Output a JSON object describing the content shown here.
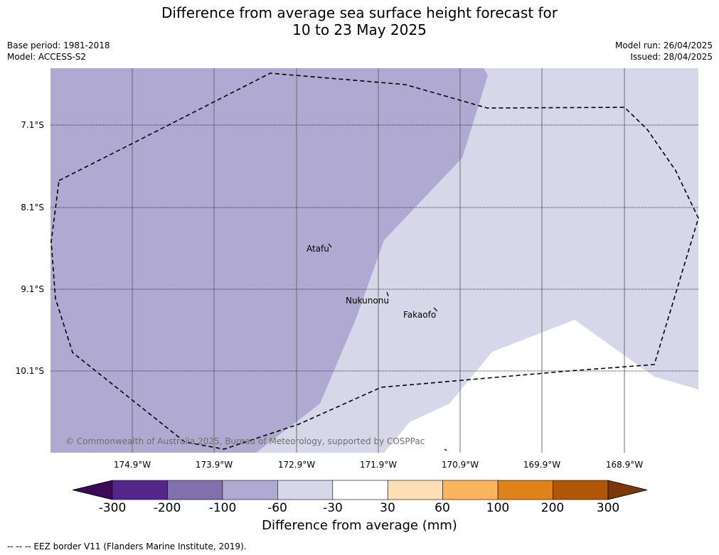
{
  "title_line1": "Difference from average sea surface height forecast for",
  "title_line2": "10 to 23 May 2025",
  "meta": {
    "base_period": "Base period: 1981-2018",
    "model": "Model: ACCESS-S2",
    "model_run": "Model run: 26/04/2025",
    "issued": "Issued: 28/04/2025"
  },
  "map": {
    "longitudes": [
      "174.9°W",
      "173.9°W",
      "172.9°W",
      "171.9°W",
      "170.9°W",
      "169.9°W",
      "168.9°W"
    ],
    "latitudes": [
      "7.1°S",
      "8.1°S",
      "9.1°S",
      "10.1°S"
    ],
    "places": [
      "Atafu",
      "Nukunonu",
      "Fakaofo"
    ],
    "copyright": "© Commonwealth of Australia 2025, Bureau of Meteorology, supported by COSPPac",
    "colors": {
      "anomaly_-100_to_-60": "#b0a9d1",
      "anomaly_-60_to_-30": "#d7d7ea",
      "anomaly_-30_to_30": "#ffffff"
    }
  },
  "colorbar": {
    "ticks": [
      "-300",
      "-200",
      "-100",
      "-60",
      "-30",
      "30",
      "60",
      "100",
      "200",
      "300"
    ],
    "colors": [
      "#3d0a5a",
      "#54268a",
      "#8070ac",
      "#b0a9d1",
      "#d7d7ea",
      "#ffffff",
      "#fddfb5",
      "#fbb55e",
      "#e0821a",
      "#b05606",
      "#7d3808"
    ],
    "title": "Difference from average (mm)"
  },
  "footnote": "--  --  -- EEZ border V11 (Flanders Marine Institute, 2019)."
}
